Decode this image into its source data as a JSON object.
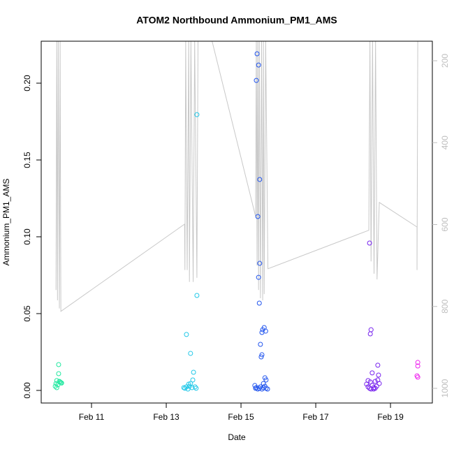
{
  "chart_data": {
    "type": "scatter",
    "title": "ATOM2 Northbound Ammonium_PM1_AMS",
    "xlabel": "Date",
    "ylabel": "Ammonium_PM1_AMS",
    "xlim": [
      9.654,
      20.12
    ],
    "ylim": [
      -0.0082,
      0.2273
    ],
    "y2lim": [
      1035.8,
      152.3
    ],
    "xticks": [
      {
        "value": 11,
        "label": "Feb 11"
      },
      {
        "value": 13,
        "label": "Feb 13"
      },
      {
        "value": 15,
        "label": "Feb 15"
      },
      {
        "value": 17,
        "label": "Feb 17"
      },
      {
        "value": 19,
        "label": "Feb 19"
      }
    ],
    "yticks": [
      {
        "value": 0,
        "label": "0.00"
      },
      0.05,
      {
        "value": 0.1,
        "label": "0.10"
      },
      0.15,
      {
        "value": 0.2,
        "label": "0.20"
      }
    ],
    "y2ticks": [
      200,
      400,
      600,
      800,
      1000
    ],
    "y2color": "#bebebe",
    "series": [
      {
        "type": "line",
        "axis": "y2",
        "color": "#c8c8c8",
        "x": [
          10.05,
          10.07,
          10.09,
          10.11,
          10.14,
          10.16,
          10.18,
          13.49,
          13.5,
          13.52,
          13.56,
          13.6,
          13.62,
          13.66,
          13.72,
          13.76,
          13.82,
          13.85,
          14.22,
          15.39,
          15.41,
          15.43,
          15.45,
          15.47,
          15.49,
          15.52,
          15.55,
          15.58,
          15.6,
          15.62,
          15.66,
          15.72,
          18.42,
          18.45,
          18.48,
          18.52,
          18.56,
          18.6,
          18.64,
          18.7,
          19.71,
          19.71,
          19.73
        ],
        "values": [
          760,
          150,
          785,
          150,
          805,
          150,
          812,
          599,
          711,
          150,
          711,
          150,
          740,
          150,
          740,
          150,
          730,
          150,
          150,
          580,
          150,
          700,
          150,
          760,
          150,
          780,
          150,
          785,
          150,
          770,
          150,
          708,
          614,
          150,
          690,
          150,
          720,
          150,
          734,
          546,
          606,
          711,
          150
        ]
      },
      {
        "color": "#22e8a0",
        "x": [
          10.12,
          10.12,
          10.07,
          10.14,
          10.18,
          10.05,
          10.1,
          10.03,
          10.07,
          10.16,
          10.2
        ],
        "values": [
          0.0168,
          0.0109,
          0.0064,
          0.0059,
          0.005,
          0.0045,
          0.0036,
          0.0027,
          0.0018,
          0.0055,
          0.0048
        ]
      },
      {
        "color": "#22c8e8",
        "x": [
          13.54,
          13.65,
          13.82,
          13.82,
          13.73,
          13.71,
          13.65,
          13.47,
          13.5,
          13.54,
          13.58,
          13.62,
          13.69,
          13.77,
          13.8,
          13.6
        ],
        "values": [
          0.0364,
          0.0241,
          0.1795,
          0.0618,
          0.0118,
          0.0068,
          0.0045,
          0.0018,
          0.0014,
          0.0023,
          0.0009,
          0.0027,
          0.0018,
          0.0023,
          0.0014,
          0.0041
        ]
      },
      {
        "color": "#2255ee",
        "x": [
          15.43,
          15.47,
          15.41,
          15.5,
          15.45,
          15.5,
          15.47,
          15.49,
          15.62,
          15.58,
          15.66,
          15.56,
          15.52,
          15.56,
          15.54,
          15.64,
          15.67,
          15.37,
          15.41,
          15.45,
          15.49,
          15.52,
          15.56,
          15.6,
          15.64,
          15.67,
          15.71,
          15.39,
          15.6
        ],
        "values": [
          0.2191,
          0.2118,
          0.2018,
          0.1373,
          0.1132,
          0.0827,
          0.0736,
          0.0568,
          0.0409,
          0.0395,
          0.0386,
          0.0377,
          0.03,
          0.0232,
          0.0218,
          0.0082,
          0.0068,
          0.0032,
          0.0018,
          0.0009,
          0.0014,
          0.0023,
          0.0009,
          0.0018,
          0.0027,
          0.0014,
          0.0009,
          0.0014,
          0.0045
        ]
      },
      {
        "color": "#7722ee",
        "x": [
          18.44,
          18.48,
          18.46,
          18.66,
          18.51,
          18.68,
          18.36,
          18.4,
          18.44,
          18.48,
          18.51,
          18.55,
          18.59,
          18.63,
          18.66,
          18.7,
          18.4,
          18.55,
          18.59,
          18.46
        ],
        "values": [
          0.0959,
          0.0395,
          0.0368,
          0.0164,
          0.0114,
          0.01,
          0.0041,
          0.0023,
          0.0014,
          0.0009,
          0.0032,
          0.0018,
          0.0059,
          0.0027,
          0.0068,
          0.0045,
          0.0064,
          0.0009,
          0.0014,
          0.0055
        ]
      },
      {
        "color": "#ee22ee",
        "x": [
          19.73,
          19.73,
          19.71,
          19.73
        ],
        "values": [
          0.0182,
          0.0159,
          0.0095,
          0.0086
        ]
      }
    ]
  }
}
